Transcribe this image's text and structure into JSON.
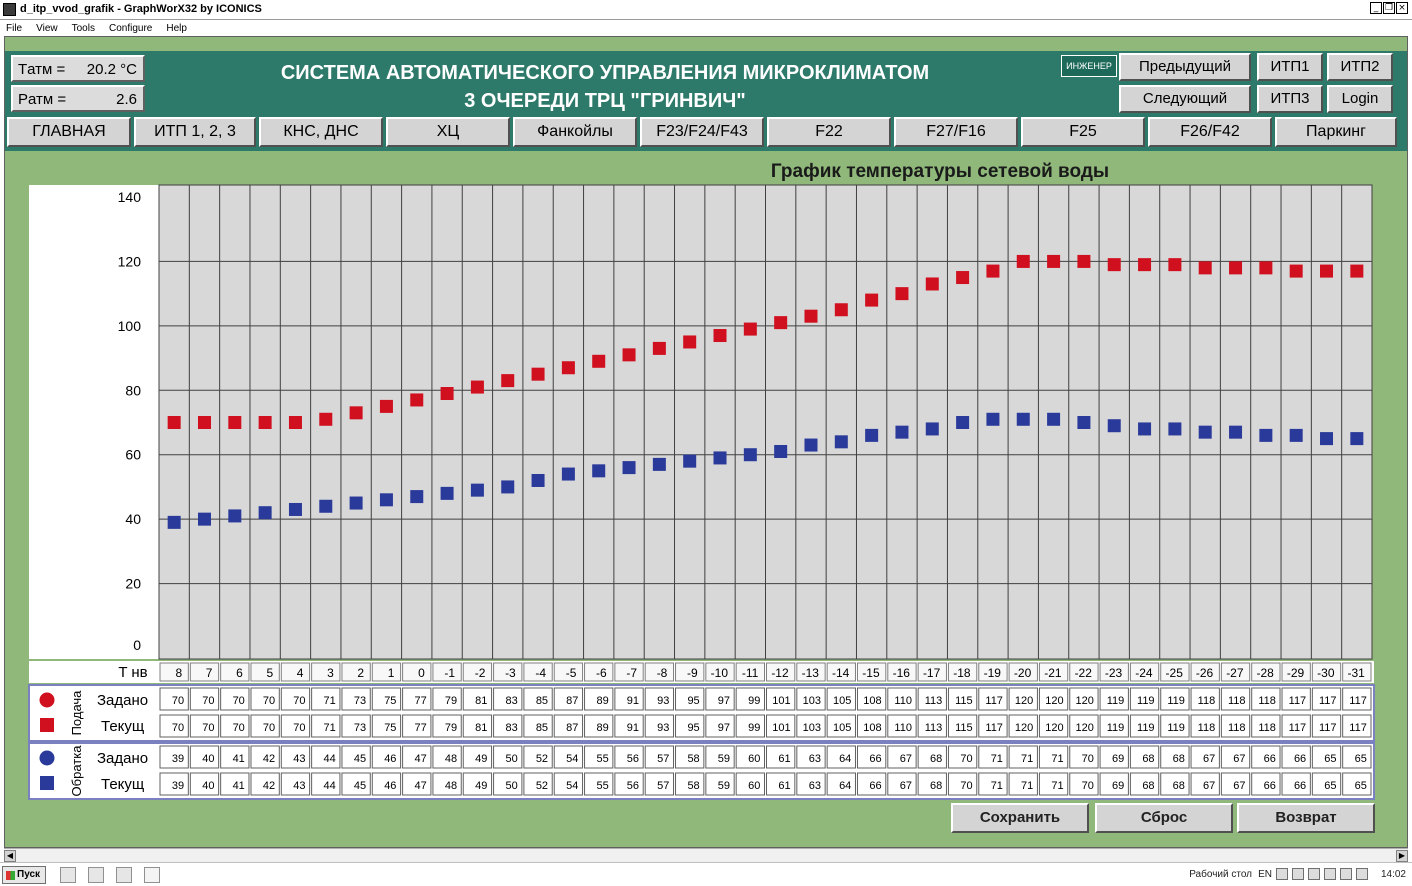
{
  "window": {
    "title": "d_itp_vvod_grafik - GraphWorX32 by ICONICS"
  },
  "menu": [
    "File",
    "View",
    "Tools",
    "Configure",
    "Help"
  ],
  "header": {
    "t_atm": {
      "label": "Tатм =",
      "value": "20.2 °C"
    },
    "p_atm": {
      "label": "Pатм =",
      "value": "2.6"
    },
    "title_line1": "СИСТЕМА АВТОМАТИЧЕСКОГО УПРАВЛЕНИЯ МИКРОКЛИМАТОМ",
    "title_line2": "3 ОЧЕРЕДИ ТРЦ \"ГРИНВИЧ\"",
    "engineer": "ИНЖЕНЕР",
    "prev": "Предыдущий",
    "next": "Следующий",
    "itp1": "ИТП1",
    "itp2": "ИТП2",
    "itp3": "ИТП3",
    "login": "Login"
  },
  "nav": [
    "ГЛАВНАЯ",
    "ИТП 1, 2, 3",
    "КНС, ДНС",
    "ХЦ",
    "Фанкойлы",
    "F23/F24/F43",
    "F22",
    "F27/F16",
    "F25",
    "F26/F42",
    "Паркинг"
  ],
  "chart": {
    "title": "График температуры сетевой воды",
    "x_label": "T нв",
    "supply_group": "Подача",
    "return_group": "Обратка",
    "setpoint_label": "Задано",
    "current_label": "Текущ"
  },
  "chart_data": {
    "type": "scatter",
    "title": "График температуры сетевой воды",
    "xlabel": "T нв",
    "ylabel": "",
    "ylim": [
      0,
      140
    ],
    "y_ticks": [
      0,
      20,
      40,
      60,
      80,
      100,
      120,
      140
    ],
    "x": [
      8,
      7,
      6,
      5,
      4,
      3,
      2,
      1,
      0,
      -1,
      -2,
      -3,
      -4,
      -5,
      -6,
      -7,
      -8,
      -9,
      -10,
      -11,
      -12,
      -13,
      -14,
      -15,
      -16,
      -17,
      -18,
      -19,
      -20,
      -21,
      -22,
      -23,
      -24,
      -25,
      -26,
      -27,
      -28,
      -29,
      -30,
      -31
    ],
    "grid": true,
    "series": [
      {
        "name": "Подача Задано",
        "color": "#d0101e",
        "marker": "circle",
        "values": [
          70,
          70,
          70,
          70,
          70,
          71,
          73,
          75,
          77,
          79,
          81,
          83,
          85,
          87,
          89,
          91,
          93,
          95,
          97,
          99,
          101,
          103,
          105,
          108,
          110,
          113,
          115,
          117,
          120,
          120,
          120,
          119,
          119,
          119,
          118,
          118,
          118,
          117,
          117,
          117
        ]
      },
      {
        "name": "Подача Текущ",
        "color": "#d0101e",
        "marker": "square",
        "values": [
          70,
          70,
          70,
          70,
          70,
          71,
          73,
          75,
          77,
          79,
          81,
          83,
          85,
          87,
          89,
          91,
          93,
          95,
          97,
          99,
          101,
          103,
          105,
          108,
          110,
          113,
          115,
          117,
          120,
          120,
          120,
          119,
          119,
          119,
          118,
          118,
          118,
          117,
          117,
          117
        ]
      },
      {
        "name": "Обратка Задано",
        "color": "#2a3a9a",
        "marker": "circle",
        "values": [
          39,
          40,
          41,
          42,
          43,
          44,
          45,
          46,
          47,
          48,
          49,
          50,
          52,
          54,
          55,
          56,
          57,
          58,
          59,
          60,
          61,
          63,
          64,
          66,
          67,
          68,
          70,
          71,
          71,
          71,
          70,
          69,
          68,
          68,
          67,
          67,
          66,
          66,
          65,
          65
        ]
      },
      {
        "name": "Обратка Текущ",
        "color": "#2a3a9a",
        "marker": "square",
        "values": [
          39,
          40,
          41,
          42,
          43,
          44,
          45,
          46,
          47,
          48,
          49,
          50,
          52,
          54,
          55,
          56,
          57,
          58,
          59,
          60,
          61,
          63,
          64,
          66,
          67,
          68,
          70,
          71,
          71,
          71,
          70,
          69,
          68,
          68,
          67,
          67,
          66,
          66,
          65,
          65
        ]
      }
    ]
  },
  "buttons": {
    "save": "Сохранить",
    "reset": "Сброс",
    "back": "Возврат"
  },
  "taskbar": {
    "start": "Пуск",
    "desktop": "Рабочий стол",
    "lang": "EN",
    "clock": "14:02"
  },
  "colors": {
    "background": "#8fb87a",
    "header": "#2e7a6a",
    "supply": "#d0101e",
    "return": "#2a3a9a"
  }
}
